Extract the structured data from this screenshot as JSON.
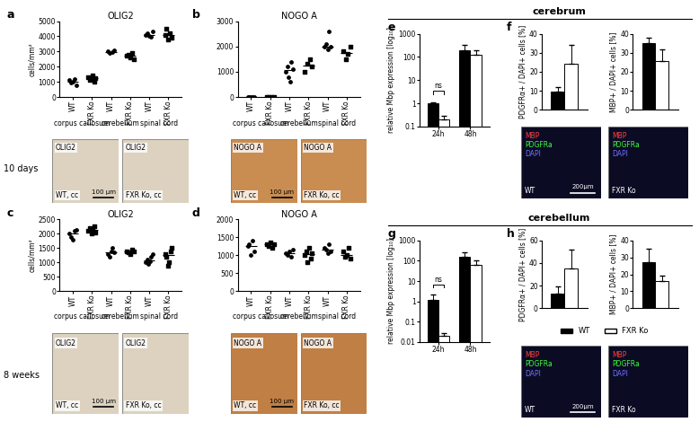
{
  "chart_data": [
    {
      "panel": "a",
      "row_label": "10 days",
      "type": "scatter",
      "title": "OLIG2",
      "ylabel": "cells/mm²",
      "categories": [
        "corpus callosum",
        "cerebellum",
        "spinal cord"
      ],
      "series": [
        {
          "name": "WT",
          "color": "#000000",
          "marker": "o",
          "values": [
            [
              1100,
              950,
              1000,
              1200,
              800
            ],
            [
              3000,
              2900,
              2950,
              3100
            ],
            [
              4100,
              4200,
              4000,
              3950,
              4300
            ]
          ]
        },
        {
          "name": "FXR Ko",
          "color": "#000000",
          "marker": "s",
          "values": [
            [
              1300,
              1100,
              1200,
              1400,
              1000,
              1250
            ],
            [
              2700,
              2800,
              2600,
              2900,
              2500
            ],
            [
              4100,
              4500,
              3800,
              4200,
              3900
            ]
          ]
        }
      ],
      "ylim": [
        0,
        5000
      ],
      "yticks": [
        0,
        1000,
        2000,
        3000,
        4000,
        5000
      ]
    },
    {
      "panel": "b",
      "type": "scatter",
      "title": "NOGO A",
      "categories": [
        "corpus callosum",
        "cerebellum",
        "spinal cord"
      ],
      "series": [
        {
          "name": "WT",
          "color": "#000000",
          "marker": "o",
          "values": [
            [
              0,
              0,
              0,
              0,
              0
            ],
            [
              1000,
              1200,
              800,
              600,
              1400,
              1100
            ],
            [
              2000,
              2100,
              1900,
              2600,
              2000
            ]
          ]
        },
        {
          "name": "FXR Ko",
          "color": "#000000",
          "marker": "s",
          "values": [
            [
              0,
              0,
              0,
              0
            ],
            [
              1000,
              1300,
              1500,
              1200
            ],
            [
              1800,
              1500,
              1700,
              2000
            ]
          ]
        }
      ],
      "ylim": [
        0,
        3000
      ],
      "yticks": [
        0,
        1000,
        2000,
        3000
      ]
    },
    {
      "panel": "c",
      "row_label": "8 weeks",
      "type": "scatter",
      "title": "OLIG2",
      "ylabel": "cells/mm²",
      "categories": [
        "corpus callosum",
        "cerebellum",
        "spinal cord"
      ],
      "series": [
        {
          "name": "WT",
          "color": "#000000",
          "marker": "o",
          "values": [
            [
              2000,
              1900,
              1800,
              2100,
              2150
            ],
            [
              1300,
              1200,
              1400,
              1500,
              1350
            ],
            [
              1000,
              1100,
              950,
              1050,
              1200,
              1300
            ]
          ]
        },
        {
          "name": "FXR Ko",
          "color": "#000000",
          "marker": "s",
          "values": [
            [
              2100,
              2200,
              2000,
              2150,
              2250,
              2050
            ],
            [
              1400,
              1350,
              1300,
              1450,
              1400
            ],
            [
              1300,
              1200,
              900,
              1000,
              1400,
              1500
            ]
          ]
        }
      ],
      "ylim": [
        0,
        2500
      ],
      "yticks": [
        0,
        500,
        1000,
        1500,
        2000,
        2500
      ]
    },
    {
      "panel": "d",
      "type": "scatter",
      "title": "NOGO A",
      "categories": [
        "corpus callosum",
        "cerebellum",
        "spinal cord"
      ],
      "series": [
        {
          "name": "WT",
          "color": "#000000",
          "marker": "o",
          "values": [
            [
              1250,
              1300,
              1000,
              1400,
              1100
            ],
            [
              1050,
              1000,
              1100,
              950,
              1150
            ],
            [
              1200,
              1150,
              1050,
              1300,
              1100
            ]
          ]
        },
        {
          "name": "FXR Ko",
          "color": "#000000",
          "marker": "s",
          "values": [
            [
              1300,
              1250,
              1350,
              1200,
              1300
            ],
            [
              1000,
              1100,
              800,
              1200,
              900,
              1050
            ],
            [
              1100,
              950,
              1000,
              1200,
              900
            ]
          ]
        }
      ],
      "ylim": [
        0,
        2000
      ],
      "yticks": [
        0,
        500,
        1000,
        1500,
        2000
      ]
    },
    {
      "panel": "e",
      "section": "cerebrum",
      "type": "bar",
      "ylabel": "relative Mbp expression [log₁₀]",
      "log": "y",
      "categories": [
        "24h",
        "48h"
      ],
      "series": [
        {
          "name": "WT",
          "color": "#000000",
          "values": [
            1,
            200
          ],
          "errors": [
            0.15,
            120
          ]
        },
        {
          "name": "FXR Ko",
          "color": "#ffffff",
          "values": [
            0.2,
            120
          ],
          "errors": [
            0.1,
            80
          ]
        }
      ],
      "ylim": [
        0.1,
        1000
      ],
      "yticks": [
        0.1,
        1,
        10,
        100,
        1000
      ],
      "annotations": [
        {
          "text": "ns",
          "category": "24h"
        }
      ]
    },
    {
      "panel": "f",
      "type": "bar",
      "ylabel": "PDGFRα+ / DAPI+ cells [%]",
      "categories": [
        null
      ],
      "tick_labels": "y",
      "series": [
        {
          "name": "WT",
          "color": "#000000",
          "values": [
            9.5
          ],
          "errors": [
            2.5
          ]
        },
        {
          "name": "FXR Ko",
          "color": "#ffffff",
          "values": [
            24
          ],
          "errors": [
            10
          ]
        }
      ],
      "ylim": [
        0,
        40
      ],
      "yticks": [
        0,
        10,
        20,
        30,
        40
      ]
    },
    {
      "panel": "f",
      "type": "bar",
      "ylabel": "MBP+ / DAPI+ cells [%]",
      "categories": [
        null
      ],
      "tick_labels": "y",
      "series": [
        {
          "name": "WT",
          "color": "#000000",
          "values": [
            35
          ],
          "errors": [
            3
          ]
        },
        {
          "name": "FXR Ko",
          "color": "#ffffff",
          "values": [
            25.5
          ],
          "errors": [
            6.5
          ]
        }
      ],
      "ylim": [
        0,
        40
      ],
      "yticks": [
        0,
        10,
        20,
        30,
        40
      ]
    },
    {
      "panel": "g",
      "section": "cerebellum",
      "type": "bar",
      "ylabel": "relative Mbp expression [log₁₀]",
      "log": "y",
      "categories": [
        "24h",
        "48h"
      ],
      "series": [
        {
          "name": "WT",
          "color": "#000000",
          "values": [
            1.2,
            150
          ],
          "errors": [
            1,
            120
          ]
        },
        {
          "name": "FXR Ko",
          "color": "#ffffff",
          "values": [
            0.02,
            60
          ],
          "errors": [
            0.006,
            50
          ]
        }
      ],
      "ylim": [
        0.01,
        1000
      ],
      "yticks": [
        0.01,
        0.1,
        1,
        10,
        100,
        1000
      ],
      "annotations": [
        {
          "text": "ns",
          "category": "24h"
        }
      ]
    },
    {
      "panel": "h",
      "type": "bar",
      "ylabel": "PDGFRα+ / DAPI+ cells [%]",
      "categories": [
        null
      ],
      "tick_labels": "y",
      "series": [
        {
          "name": "WT",
          "color": "#000000",
          "values": [
            13
          ],
          "errors": [
            6
          ]
        },
        {
          "name": "FXR Ko",
          "color": "#ffffff",
          "values": [
            35
          ],
          "errors": [
            17
          ]
        }
      ],
      "ylim": [
        0,
        60
      ],
      "yticks": [
        0,
        20,
        40,
        60
      ]
    },
    {
      "panel": "h",
      "type": "bar",
      "ylabel": "MBP+ / DAPI+ cells [%]",
      "categories": [
        null
      ],
      "tick_labels": "y",
      "legend": "center",
      "series": [
        {
          "name": "WT",
          "color": "#000000",
          "values": [
            27
          ],
          "errors": [
            8
          ]
        },
        {
          "name": "FXR Ko",
          "color": "#ffffff",
          "values": [
            16
          ],
          "errors": [
            3
          ]
        }
      ],
      "ylim": [
        0,
        40
      ],
      "yticks": [
        0,
        10,
        20,
        30,
        40
      ]
    }
  ],
  "images": [
    {
      "panel": "a",
      "stain": "OLIG2",
      "caption": "WT, cc",
      "scale": "100 µm",
      "color": "#dcd2bf"
    },
    {
      "panel": "a",
      "stain": "OLIG2",
      "caption": "FXR Ko, cc",
      "color": "#dcd2bf"
    },
    {
      "panel": "b",
      "stain": "NOGO A",
      "caption": "WT, cc",
      "scale": "100 µm",
      "color": "#c98d52"
    },
    {
      "panel": "b",
      "stain": "NOGO A",
      "caption": "FXR Ko, cc",
      "color": "#c98d52"
    },
    {
      "panel": "c",
      "stain": "OLIG2",
      "caption": "WT, cc",
      "scale": "100 µm",
      "color": "#dcd2bf"
    },
    {
      "panel": "c",
      "stain": "OLIG2",
      "caption": "FXR Ko, cc",
      "color": "#dcd2bf"
    },
    {
      "panel": "d",
      "stain": "NOGO A",
      "caption": "WT, cc",
      "scale": "100 µm",
      "color": "#c07f45"
    },
    {
      "panel": "d",
      "stain": "NOGO A",
      "caption": "FXR Ko, cc",
      "color": "#c07f45"
    },
    {
      "panel": "f",
      "channels": [
        {
          "text": "MBP",
          "color": "#ff4040"
        },
        {
          "text": "PDGFRa",
          "color": "#40ff40"
        },
        {
          "text": "DAPI",
          "color": "#7070ff"
        }
      ],
      "caption": "WT",
      "scale": "200µm",
      "color": "#0b0b24"
    },
    {
      "panel": "f",
      "channels": [
        {
          "text": "MBP",
          "color": "#ff4040"
        },
        {
          "text": "PDGFRa",
          "color": "#40ff40"
        },
        {
          "text": "DAPI",
          "color": "#7070ff"
        }
      ],
      "caption": "FXR Ko",
      "color": "#0b0b24"
    },
    {
      "panel": "h",
      "channels": [
        {
          "text": "MBP",
          "color": "#ff4040"
        },
        {
          "text": "PDGFRa",
          "color": "#40ff40"
        },
        {
          "text": "DAPI",
          "color": "#7070ff"
        }
      ],
      "caption": "WT",
      "scale": "200µm",
      "color": "#0b0b24"
    },
    {
      "panel": "h",
      "channels": [
        {
          "text": "MBP",
          "color": "#ff4040"
        },
        {
          "text": "PDGFRa",
          "color": "#40ff40"
        },
        {
          "text": "DAPI",
          "color": "#7070ff"
        }
      ],
      "caption": "FXR Ko",
      "color": "#0b0b24"
    }
  ]
}
